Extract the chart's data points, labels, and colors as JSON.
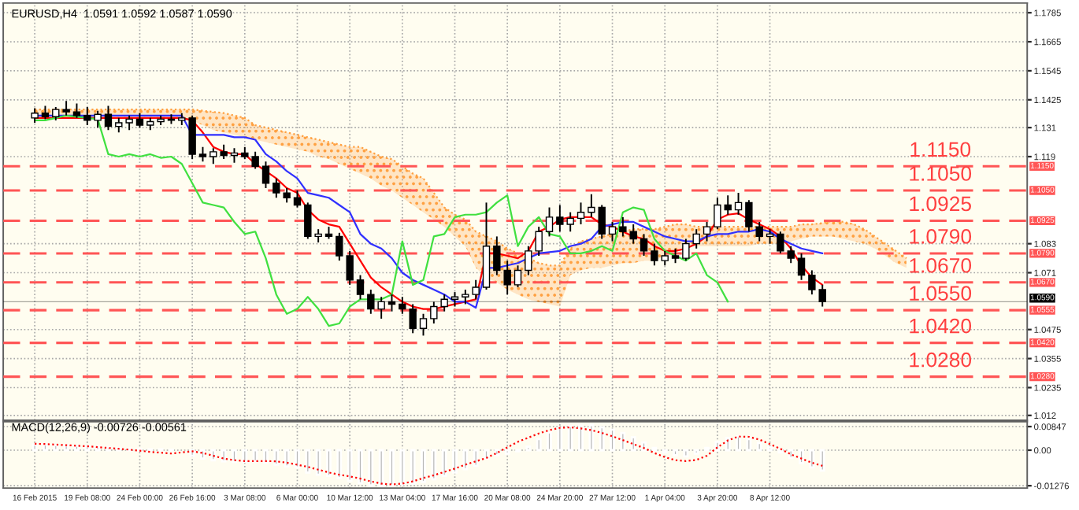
{
  "chart_data": [
    {
      "type": "candlestick",
      "title": "EURUSD,H4  1.0591 1.0592 1.0587 1.0590",
      "color": "#000000",
      "categories": [
        null,
        null,
        null,
        null,
        null,
        null,
        null,
        null,
        null,
        null,
        null,
        null,
        null,
        null,
        null,
        null,
        null,
        null,
        null,
        null,
        null,
        null,
        null,
        null,
        null,
        null,
        null,
        null,
        null,
        null,
        null,
        null,
        null,
        null,
        null,
        null,
        null,
        null,
        null,
        null,
        null,
        null,
        null,
        null,
        null,
        null,
        null,
        null,
        null,
        null,
        null,
        null,
        null,
        null,
        null,
        null,
        null,
        null,
        null,
        null,
        null,
        null,
        null,
        null,
        null,
        null,
        null,
        null,
        null,
        null,
        null,
        null,
        null,
        null,
        null,
        null,
        null,
        null,
        null,
        null,
        null,
        null,
        null,
        null,
        null,
        null,
        null,
        null,
        null,
        null,
        null,
        null,
        null,
        null,
        null
      ],
      "ohlc": [
        [
          1.135,
          1.139,
          1.133,
          1.137
        ],
        [
          1.137,
          1.14,
          1.1345,
          1.1355
        ],
        [
          1.1355,
          1.1395,
          1.134,
          1.1385
        ],
        [
          1.1385,
          1.142,
          1.136,
          1.1375
        ],
        [
          1.1375,
          1.141,
          1.135,
          1.136
        ],
        [
          1.136,
          1.1395,
          1.132,
          1.134
        ],
        [
          1.134,
          1.138,
          1.131,
          1.1365
        ],
        [
          1.1365,
          1.14,
          1.13,
          1.1315
        ],
        [
          1.1315,
          1.135,
          1.129,
          1.133
        ],
        [
          1.133,
          1.136,
          1.13,
          1.1345
        ],
        [
          1.1345,
          1.137,
          1.131,
          1.132
        ],
        [
          1.132,
          1.135,
          1.13,
          1.1335
        ],
        [
          1.1335,
          1.136,
          1.132,
          1.1345
        ],
        [
          1.1345,
          1.1365,
          1.1325,
          1.134
        ],
        [
          1.134,
          1.137,
          1.132,
          1.135
        ],
        [
          1.135,
          1.136,
          1.118,
          1.12
        ],
        [
          1.12,
          1.123,
          1.117,
          1.119
        ],
        [
          1.119,
          1.1225,
          1.116,
          1.121
        ],
        [
          1.121,
          1.124,
          1.118,
          1.1195
        ],
        [
          1.1195,
          1.1225,
          1.1165,
          1.1205
        ],
        [
          1.1205,
          1.123,
          1.118,
          1.119
        ],
        [
          1.119,
          1.121,
          1.114,
          1.115
        ],
        [
          1.115,
          1.117,
          1.106,
          1.108
        ],
        [
          1.108,
          1.11,
          1.102,
          1.104
        ],
        [
          1.104,
          1.106,
          1.1,
          1.102
        ],
        [
          1.102,
          1.105,
          1.098,
          1.099
        ],
        [
          1.099,
          1.1,
          1.085,
          1.086
        ],
        [
          1.086,
          1.089,
          1.0835,
          1.087
        ],
        [
          1.087,
          1.09,
          1.085,
          1.086
        ],
        [
          1.086,
          1.0875,
          1.076,
          1.078
        ],
        [
          1.078,
          1.08,
          1.066,
          1.068
        ],
        [
          1.068,
          1.07,
          1.06,
          1.062
        ],
        [
          1.062,
          1.064,
          1.054,
          1.056
        ],
        [
          1.056,
          1.061,
          1.052,
          1.059
        ],
        [
          1.059,
          1.062,
          1.055,
          1.058
        ],
        [
          1.058,
          1.061,
          1.054,
          1.056
        ],
        [
          1.056,
          1.058,
          1.046,
          1.048
        ],
        [
          1.048,
          1.054,
          1.045,
          1.052
        ],
        [
          1.052,
          1.059,
          1.05,
          1.057
        ],
        [
          1.057,
          1.062,
          1.055,
          1.06
        ],
        [
          1.06,
          1.063,
          1.057,
          1.061
        ],
        [
          1.061,
          1.064,
          1.058,
          1.062
        ],
        [
          1.062,
          1.068,
          1.06,
          1.065
        ],
        [
          1.065,
          1.1,
          1.064,
          1.082
        ],
        [
          1.082,
          1.086,
          1.07,
          1.072
        ],
        [
          1.072,
          1.076,
          1.062,
          1.066
        ],
        [
          1.066,
          1.074,
          1.065,
          1.072
        ],
        [
          1.072,
          1.082,
          1.07,
          1.08
        ],
        [
          1.08,
          1.09,
          1.078,
          1.088
        ],
        [
          1.088,
          1.098,
          1.086,
          1.094
        ],
        [
          1.094,
          1.099,
          1.088,
          1.091
        ],
        [
          1.091,
          1.096,
          1.088,
          1.0935
        ],
        [
          1.0935,
          1.1,
          1.091,
          1.096
        ],
        [
          1.096,
          1.1035,
          1.094,
          1.098
        ],
        [
          1.098,
          1.099,
          1.085,
          1.087
        ],
        [
          1.087,
          1.092,
          1.084,
          1.09
        ],
        [
          1.09,
          1.094,
          1.086,
          1.088
        ],
        [
          1.088,
          1.091,
          1.083,
          1.085
        ],
        [
          1.085,
          1.087,
          1.078,
          1.08
        ],
        [
          1.08,
          1.083,
          1.074,
          1.076
        ],
        [
          1.076,
          1.08,
          1.074,
          1.078
        ],
        [
          1.078,
          1.081,
          1.075,
          1.077
        ],
        [
          1.077,
          1.085,
          1.076,
          1.083
        ],
        [
          1.083,
          1.089,
          1.081,
          1.087
        ],
        [
          1.087,
          1.092,
          1.084,
          1.09
        ],
        [
          1.09,
          1.102,
          1.089,
          1.099
        ],
        [
          1.099,
          1.103,
          1.095,
          1.097
        ],
        [
          1.097,
          1.104,
          1.095,
          1.1
        ],
        [
          1.1,
          1.101,
          1.088,
          1.09
        ],
        [
          1.09,
          1.092,
          1.084,
          1.086
        ],
        [
          1.086,
          1.089,
          1.083,
          1.087
        ],
        [
          1.087,
          1.088,
          1.079,
          1.08
        ],
        [
          1.08,
          1.082,
          1.075,
          1.077
        ],
        [
          1.077,
          1.079,
          1.068,
          1.07
        ],
        [
          1.07,
          1.072,
          1.062,
          1.064
        ],
        [
          1.064,
          1.066,
          1.057,
          1.059
        ],
        null,
        null,
        null,
        null,
        null,
        null,
        null,
        null,
        null,
        null,
        null,
        null,
        null,
        null,
        null,
        null,
        null,
        null,
        null
      ],
      "series": [
        {
          "type": "line",
          "color": "#ffa040",
          "line_style": "dotted",
          "values": [
            1.1385,
            1.1385,
            1.1385,
            1.1385,
            1.1385,
            1.1385,
            1.1385,
            1.1385,
            1.1385,
            1.1385,
            1.1385,
            1.1385,
            1.1385,
            1.1385,
            1.1385,
            1.1385,
            1.138,
            1.1375,
            1.137,
            1.136,
            1.135,
            1.132,
            1.131,
            1.13,
            1.129,
            1.128,
            1.127,
            1.126,
            1.125,
            1.124,
            1.123,
            1.123,
            1.121,
            1.119,
            1.118,
            1.115,
            1.112,
            1.11,
            1.104,
            1.098,
            1.095,
            1.093,
            1.088,
            1.086,
            1.084,
            1.081,
            1.079,
            1.077,
            1.075,
            1.074,
            1.074,
            1.081,
            1.084,
            1.085,
            1.086,
            1.087,
            1.088,
            1.089,
            1.089,
            1.089,
            1.09,
            1.091,
            1.091,
            1.09,
            1.09,
            1.09,
            1.09,
            1.09,
            1.09,
            1.09,
            1.09,
            1.09,
            1.09,
            1.091,
            1.091,
            1.0915,
            1.0925,
            1.092,
            1.091,
            1.089,
            1.086,
            1.083,
            1.08,
            1.077,
            null,
            null,
            null,
            null,
            null,
            null,
            null,
            null,
            null,
            null,
            null
          ],
          "upper": [
            1.1385,
            1.1385,
            1.1385,
            1.1385,
            1.1385,
            1.1385,
            1.1385,
            1.1385,
            1.1385,
            1.1385,
            1.1385,
            1.1385,
            1.1385,
            1.1385,
            1.1385,
            1.1385,
            1.138,
            1.1375,
            1.137,
            1.136,
            1.135,
            1.132,
            1.131,
            1.13,
            1.129,
            1.128,
            1.127,
            1.126,
            1.125,
            1.124,
            1.123,
            1.123,
            1.121,
            1.119,
            1.118,
            1.115,
            1.112,
            1.11,
            1.104,
            1.098,
            1.095,
            1.093,
            1.088,
            1.086,
            1.084,
            1.081,
            1.079,
            1.077,
            1.075,
            1.074,
            1.074,
            1.081,
            1.084,
            1.085,
            1.086,
            1.087,
            1.088,
            1.089,
            1.089,
            1.089,
            1.09,
            1.091,
            1.091,
            1.09,
            1.09,
            1.09,
            1.09,
            1.09,
            1.09,
            1.09,
            1.09,
            1.09,
            1.09,
            1.091,
            1.091,
            1.0915,
            1.0925,
            1.092,
            1.091,
            1.089,
            1.086,
            1.083,
            1.08,
            1.077,
            null,
            null,
            null,
            null,
            null,
            null,
            null,
            null,
            null,
            null,
            null
          ],
          "lower": [
            1.1355,
            1.1355,
            1.1355,
            1.1355,
            1.1355,
            1.1355,
            1.1355,
            1.1355,
            1.1355,
            1.1355,
            1.1355,
            1.1355,
            1.1355,
            1.1355,
            1.1355,
            1.134,
            1.132,
            1.13,
            1.129,
            1.128,
            1.127,
            1.126,
            1.125,
            1.124,
            1.123,
            1.122,
            1.121,
            1.119,
            1.118,
            1.116,
            1.114,
            1.112,
            1.11,
            1.107,
            1.105,
            1.102,
            1.099,
            1.096,
            1.093,
            1.09,
            1.086,
            1.082,
            1.073,
            1.069,
            1.067,
            1.064,
            1.062,
            1.06,
            1.059,
            1.058,
            1.057,
            1.07,
            1.072,
            1.073,
            1.073,
            1.074,
            1.075,
            1.075,
            1.076,
            1.076,
            1.078,
            1.08,
            1.082,
            1.082,
            1.082,
            1.082,
            1.082,
            1.082,
            1.082,
            1.083,
            1.083,
            1.083,
            1.084,
            1.085,
            1.086,
            1.086,
            1.086,
            1.085,
            1.084,
            1.083,
            1.081,
            1.078,
            1.075,
            1.073,
            null,
            null,
            null,
            null,
            null,
            null,
            null,
            null,
            null,
            null,
            null
          ]
        },
        {
          "type": "line",
          "color": "#ff0000",
          "values": [
            1.135,
            1.135,
            1.135,
            1.135,
            1.135,
            1.135,
            1.135,
            1.135,
            1.135,
            1.135,
            1.135,
            1.135,
            1.135,
            1.135,
            1.135,
            1.134,
            1.129,
            1.123,
            1.121,
            1.12,
            1.12,
            1.116,
            1.113,
            1.11,
            1.106,
            1.104,
            1.097,
            1.093,
            1.091,
            1.09,
            1.083,
            1.076,
            1.069,
            1.065,
            1.062,
            1.059,
            1.057,
            1.056,
            1.056,
            1.057,
            1.058,
            1.059,
            1.06,
            1.079,
            1.079,
            1.078,
            1.077,
            1.08,
            1.088,
            1.09,
            1.093,
            1.094,
            1.094,
            1.094,
            1.091,
            1.09,
            1.088,
            1.086,
            1.085,
            1.082,
            1.08,
            1.08,
            1.081,
            1.083,
            1.086,
            1.093,
            1.095,
            1.0955,
            1.093,
            1.091,
            1.089,
            1.086,
            1.081,
            1.074,
            1.069,
            1.066,
            null,
            null,
            null,
            null,
            null,
            null,
            null,
            null,
            null,
            null,
            null,
            null,
            null,
            null,
            null,
            null,
            null,
            null,
            null
          ]
        },
        {
          "type": "line",
          "color": "#3030ff",
          "values": [
            1.136,
            1.136,
            1.136,
            1.136,
            1.136,
            1.136,
            1.136,
            1.136,
            1.136,
            1.136,
            1.136,
            1.136,
            1.136,
            1.136,
            1.136,
            1.128,
            1.128,
            1.128,
            1.128,
            1.127,
            1.127,
            1.126,
            1.12,
            1.117,
            1.113,
            1.11,
            1.104,
            1.103,
            1.102,
            1.099,
            1.096,
            1.087,
            1.083,
            1.081,
            1.077,
            1.071,
            1.068,
            1.066,
            1.064,
            1.062,
            1.059,
            1.059,
            1.0565,
            1.073,
            1.073,
            1.074,
            1.075,
            1.077,
            1.079,
            1.0795,
            1.08,
            1.082,
            1.083,
            1.085,
            1.09,
            1.091,
            1.092,
            1.092,
            1.09,
            1.088,
            1.086,
            1.085,
            1.084,
            1.084,
            1.086,
            1.087,
            1.087,
            1.088,
            1.088,
            1.089,
            1.088,
            1.085,
            1.083,
            1.081,
            1.08,
            1.079,
            null,
            null,
            null,
            null,
            null,
            null,
            null,
            null,
            null,
            null,
            null,
            null,
            null,
            null,
            null,
            null,
            null,
            null,
            null
          ]
        },
        {
          "type": "line",
          "color": "#40e040",
          "values": [
            1.134,
            1.134,
            1.135,
            1.136,
            1.1355,
            1.135,
            1.1345,
            1.12,
            1.119,
            1.12,
            1.119,
            1.12,
            1.1185,
            1.119,
            1.116,
            1.108,
            1.1,
            1.099,
            1.098,
            1.092,
            1.087,
            1.088,
            1.077,
            1.062,
            1.054,
            1.056,
            1.061,
            1.056,
            1.049,
            1.05,
            1.057,
            1.06,
            1.06,
            1.06,
            1.062,
            1.084,
            1.066,
            1.068,
            1.086,
            1.087,
            1.094,
            1.095,
            1.095,
            1.096,
            1.1,
            1.103,
            1.082,
            1.09,
            1.094,
            1.087,
            1.086,
            1.079,
            1.079,
            1.08,
            1.082,
            1.08,
            1.096,
            1.098,
            1.097,
            1.085,
            1.08,
            1.078,
            1.076,
            1.079,
            1.07,
            1.067,
            1.059,
            null,
            null,
            null,
            null,
            null,
            null,
            null,
            null,
            null,
            null,
            null,
            null,
            null,
            null,
            null,
            null,
            null,
            null,
            null,
            null,
            null,
            null,
            null,
            null,
            null,
            null,
            null,
            null
          ]
        }
      ],
      "ylim": [
        1.01,
        1.1825
      ],
      "yticks": [
        1.1785,
        1.1665,
        1.1545,
        1.1425,
        1.131,
        1.119,
        1.083,
        1.071,
        1.0475,
        1.0355,
        1.0235,
        1.012
      ],
      "ref_lines": [
        {
          "axis": "y",
          "value": 1.115,
          "label": "1.1150",
          "color": "#ff5555",
          "line_style": "dashed"
        },
        {
          "axis": "y",
          "value": 1.105,
          "label": "1.1050",
          "color": "#ff5555",
          "line_style": "dashed"
        },
        {
          "axis": "y",
          "value": 1.0925,
          "label": "1.0925",
          "color": "#ff5555",
          "line_style": "dashed"
        },
        {
          "axis": "y",
          "value": 1.079,
          "label": "1.0790",
          "color": "#ff5555",
          "line_style": "dashed"
        },
        {
          "axis": "y",
          "value": 1.067,
          "label": "1.0670",
          "color": "#ff5555",
          "line_style": "dashed"
        },
        {
          "axis": "y",
          "value": 1.0555,
          "label": "1.0555",
          "color": "#ff5555",
          "line_style": "dashed"
        },
        {
          "axis": "y",
          "value": 1.042,
          "label": "1.0420",
          "color": "#ff5555",
          "line_style": "dashed"
        },
        {
          "axis": "y",
          "value": 1.028,
          "label": "1.0280",
          "color": "#ff5555",
          "line_style": "dashed"
        },
        {
          "axis": "y",
          "value": 1.059,
          "label": "1.0590",
          "color": "#000000",
          "line_style": "solid"
        }
      ],
      "annotations": [
        {
          "text": "1.1150",
          "y": 1.115
        },
        {
          "text": "1.1050",
          "y": 1.105
        },
        {
          "text": "1.0925",
          "y": 1.0925
        },
        {
          "text": "1.0790",
          "y": 1.079
        },
        {
          "text": "1.0670",
          "y": 1.067
        },
        {
          "text": "1.0550",
          "y": 1.0555
        },
        {
          "text": "1.0420",
          "y": 1.042
        },
        {
          "text": "1.0280",
          "y": 1.028
        }
      ],
      "grid": true,
      "tick_labels": "y"
    },
    {
      "type": "bar",
      "title": "MACD(12,26,9) -0.00726 -0.00561",
      "categories": [
        "16 Feb 2015",
        null,
        null,
        null,
        null,
        "19 Feb 08:00",
        null,
        null,
        null,
        null,
        "24 Feb 00:00",
        null,
        null,
        null,
        null,
        "26 Feb 16:00",
        null,
        null,
        null,
        null,
        "3 Mar 08:00",
        null,
        null,
        null,
        null,
        "6 Mar 00:00",
        null,
        null,
        null,
        null,
        "10 Mar 12:00",
        null,
        null,
        null,
        null,
        "13 Mar 04:00",
        null,
        null,
        null,
        null,
        "17 Mar 16:00",
        null,
        null,
        null,
        null,
        "20 Mar 08:00",
        null,
        null,
        null,
        null,
        "24 Mar 20:00",
        null,
        null,
        null,
        null,
        "27 Mar 12:00",
        null,
        null,
        null,
        null,
        "1 Apr 04:00",
        null,
        null,
        null,
        null,
        "3 Apr 20:00",
        null,
        null,
        null,
        null,
        "8 Apr 12:00",
        null,
        null,
        null,
        null,
        null,
        null,
        null,
        null,
        null,
        null,
        null,
        null,
        null,
        null,
        null,
        null,
        null,
        null,
        null,
        null,
        null,
        null,
        null,
        null
      ],
      "series": [
        {
          "type": "bar",
          "color": "#b8b8b8",
          "values": [
            0.002,
            0.002,
            0.0018,
            0.0017,
            0.0016,
            0.0014,
            0.0012,
            0.001,
            0.0008,
            0.0006,
            0.0004,
            0.0003,
            0.0003,
            0.0002,
            null,
            -0.002,
            -0.003,
            -0.0036,
            -0.004,
            -0.0042,
            -0.0042,
            -0.004,
            -0.0045,
            -0.0052,
            -0.0058,
            -0.0062,
            -0.008,
            -0.0088,
            -0.0092,
            -0.01,
            -0.011,
            -0.0118,
            -0.0126,
            -0.0128,
            -0.0126,
            -0.0122,
            -0.012,
            -0.0114,
            -0.0104,
            -0.0092,
            -0.008,
            -0.0068,
            -0.0056,
            -0.003,
            -0.0018,
            -0.0012,
            -0.0004,
            0.0012,
            0.004,
            0.0064,
            0.008,
            0.0086,
            0.0088,
            0.009,
            0.0082,
            0.0074,
            0.0062,
            0.0046,
            0.0028,
            0.0008,
            -0.0008,
            -0.0018,
            -0.0022,
            -0.0012,
            0.0008,
            0.003,
            0.0044,
            0.005,
            0.004,
            0.0026,
            0.001,
            -0.0008,
            -0.0028,
            -0.0046,
            -0.0062,
            -0.0073,
            null,
            null,
            null,
            null,
            null,
            null,
            null,
            null,
            null,
            null,
            null,
            null,
            null,
            null,
            null,
            null,
            null,
            null,
            null
          ]
        },
        {
          "type": "line",
          "color": "#ff0000",
          "line_style": "dotted",
          "values": [
            0.0023,
            0.0022,
            0.002,
            0.0018,
            0.0016,
            0.0014,
            0.0011,
            0.0008,
            0.0005,
            0.0002,
            -0.0002,
            -0.0006,
            -0.0009,
            -0.0012,
            -0.0008,
            -0.0004,
            -0.001,
            -0.002,
            -0.003,
            -0.0036,
            -0.0039,
            -0.0039,
            -0.0039,
            -0.004,
            -0.0045,
            -0.0052,
            -0.006,
            -0.007,
            -0.008,
            -0.0088,
            -0.0094,
            -0.0102,
            -0.0112,
            -0.012,
            -0.0123,
            -0.012,
            -0.0112,
            -0.01,
            -0.009,
            -0.0078,
            -0.0066,
            -0.0052,
            -0.004,
            -0.0028,
            -0.001,
            0.001,
            0.003,
            0.0045,
            0.006,
            0.0072,
            0.008,
            0.0082,
            0.0078,
            0.0072,
            0.0062,
            0.005,
            0.0036,
            0.0022,
            0.0008,
            -0.001,
            -0.0025,
            -0.0036,
            -0.0039,
            -0.0035,
            -0.002,
            0.001,
            0.0035,
            0.0049,
            0.0048,
            0.0038,
            0.0022,
            0.0005,
            -0.0015,
            -0.003,
            -0.0045,
            -0.0056,
            null,
            null,
            null,
            null,
            null,
            null,
            null,
            null,
            null,
            null,
            null,
            null,
            null,
            null,
            null,
            null,
            null,
            null,
            null
          ]
        }
      ],
      "ylim": [
        -0.0136,
        0.0102
      ],
      "yticks": [
        0.00847,
        {
          "value": 0,
          "label": "0.00"
        },
        -0.01276
      ],
      "grid": true
    }
  ]
}
